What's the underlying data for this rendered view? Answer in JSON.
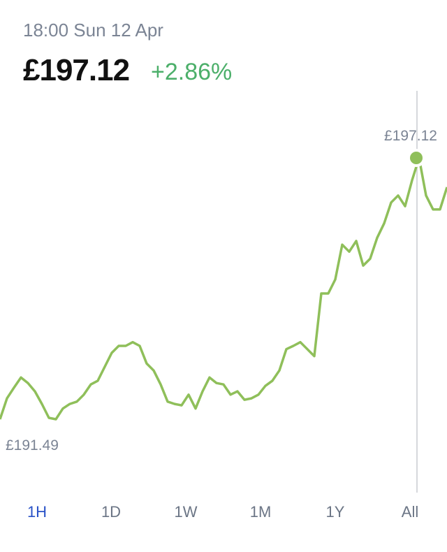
{
  "header": {
    "time": "18:00 Sun 12 Apr",
    "price": "£197.12",
    "change": "+2.86%"
  },
  "chart_data": {
    "type": "line",
    "color": "#8fbf5a",
    "values": [
      191.49,
      191.94,
      192.17,
      192.39,
      192.27,
      192.09,
      191.82,
      191.52,
      191.49,
      191.72,
      191.82,
      191.87,
      192.02,
      192.24,
      192.32,
      192.62,
      192.92,
      193.07,
      193.07,
      193.15,
      193.07,
      192.69,
      192.54,
      192.24,
      191.87,
      191.82,
      191.79,
      192.02,
      191.72,
      192.09,
      192.39,
      192.27,
      192.24,
      192.02,
      192.09,
      191.91,
      191.94,
      192.02,
      192.21,
      192.32,
      192.54,
      193.0,
      193.07,
      193.15,
      193.0,
      192.85,
      194.2,
      194.2,
      194.5,
      195.25,
      195.1,
      195.33,
      194.8,
      194.95,
      195.4,
      195.71,
      196.16,
      196.31,
      196.08,
      196.64,
      197.12,
      196.31,
      196.01,
      196.01,
      196.49
    ],
    "high_label": "£197.12",
    "low_label": "£191.49"
  },
  "tabs": [
    "1H",
    "1D",
    "1W",
    "1M",
    "1Y",
    "All"
  ],
  "selected_tab": "1H"
}
